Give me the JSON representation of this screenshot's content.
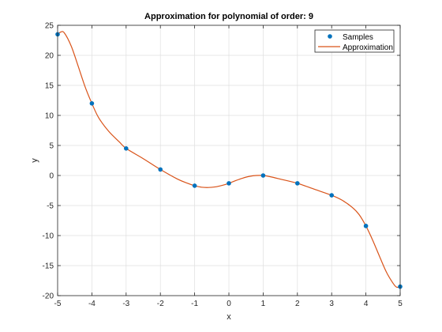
{
  "chart_data": {
    "type": "line",
    "title": "Approximation for polynomial of order: 9",
    "xlabel": "x",
    "ylabel": "y",
    "xlim": [
      -5,
      5
    ],
    "ylim": [
      -20,
      25
    ],
    "xticks": [
      -5,
      -4,
      -3,
      -2,
      -1,
      0,
      1,
      2,
      3,
      4,
      5
    ],
    "yticks": [
      -20,
      -15,
      -10,
      -5,
      0,
      5,
      10,
      15,
      20,
      25
    ],
    "grid": true,
    "legend_position": "top-right",
    "series": [
      {
        "name": "Samples",
        "kind": "scatter",
        "color": "#0072BD",
        "x": [
          -5,
          -4,
          -3,
          -2,
          -1,
          0,
          1,
          2,
          3,
          4,
          5
        ],
        "y": [
          23.5,
          12.0,
          4.5,
          1.0,
          -1.7,
          -1.3,
          0.0,
          -1.3,
          -3.3,
          -8.4,
          -18.5
        ]
      },
      {
        "name": "Approximation",
        "kind": "line",
        "color": "#D95319",
        "x": [
          -5,
          -4.9,
          -4.8,
          -4.6,
          -4.4,
          -4.2,
          -4,
          -3.8,
          -3.5,
          -3.2,
          -3,
          -2.5,
          -2,
          -1.5,
          -1.2,
          -1,
          -0.8,
          -0.6,
          -0.4,
          -0.2,
          0,
          0.2,
          0.4,
          0.6,
          0.8,
          1,
          1.2,
          1.5,
          2,
          2.5,
          3,
          3.3,
          3.6,
          3.8,
          4,
          4.2,
          4.4,
          4.6,
          4.8,
          4.9,
          5
        ],
        "y": [
          23.5,
          23.9,
          23.7,
          21.5,
          18.2,
          14.8,
          12.0,
          9.6,
          7.3,
          5.6,
          4.5,
          2.8,
          1.0,
          -0.6,
          -1.3,
          -1.7,
          -1.95,
          -2.0,
          -1.9,
          -1.65,
          -1.3,
          -0.85,
          -0.45,
          -0.15,
          0.0,
          0.0,
          -0.2,
          -0.6,
          -1.3,
          -2.3,
          -3.3,
          -4.1,
          -5.3,
          -6.5,
          -8.4,
          -10.8,
          -13.5,
          -16.1,
          -18.0,
          -18.6,
          -18.5
        ]
      }
    ]
  }
}
